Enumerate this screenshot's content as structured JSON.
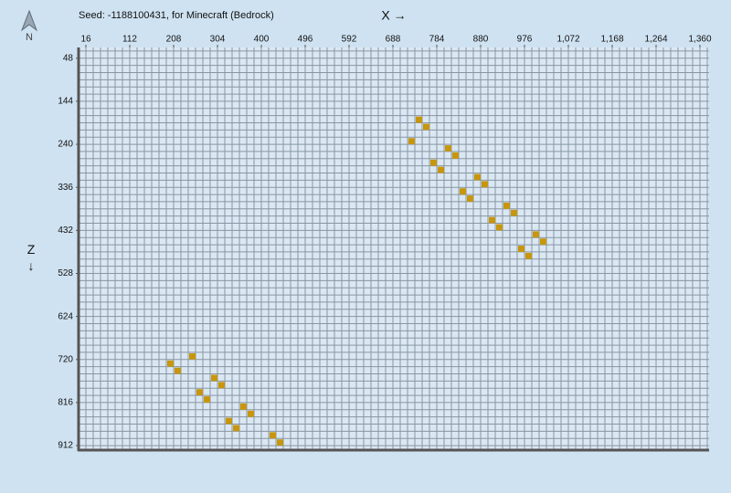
{
  "chart_data": {
    "type": "scatter",
    "title": "Seed: -1188100431, for Minecraft (Bedrock)",
    "x_label": "X →",
    "y_label": "Z ↓",
    "compass": "N",
    "marker": "square",
    "y_inverted": true,
    "grid": true,
    "xlim": [
      0,
      1376
    ],
    "ylim": [
      24,
      920
    ],
    "xticks": [
      16,
      112,
      208,
      304,
      400,
      496,
      592,
      688,
      784,
      880,
      976,
      {
        "value": 1072,
        "label": "1,072"
      },
      {
        "value": 1168,
        "label": "1,168"
      },
      {
        "value": 1264,
        "label": "1,264"
      },
      {
        "value": 1360,
        "label": "1,360"
      }
    ],
    "yticks": [
      48,
      144,
      240,
      336,
      432,
      528,
      624,
      720,
      816,
      912
    ],
    "series": [
      {
        "color": "#c8960c",
        "x": [
          736,
          752,
          720,
          800,
          816,
          768,
          784,
          864,
          880,
          832,
          848,
          928,
          944,
          896,
          912,
          992,
          1008,
          960,
          976,
          240,
          192,
          208,
          288,
          304,
          256,
          272,
          352,
          368,
          320,
          336,
          416,
          432
        ],
        "values": [
          176,
          192,
          224,
          240,
          256,
          272,
          288,
          304,
          320,
          336,
          352,
          368,
          384,
          400,
          416,
          432,
          448,
          464,
          480,
          704,
          720,
          736,
          752,
          768,
          784,
          800,
          816,
          832,
          848,
          864,
          880,
          896
        ]
      }
    ]
  }
}
